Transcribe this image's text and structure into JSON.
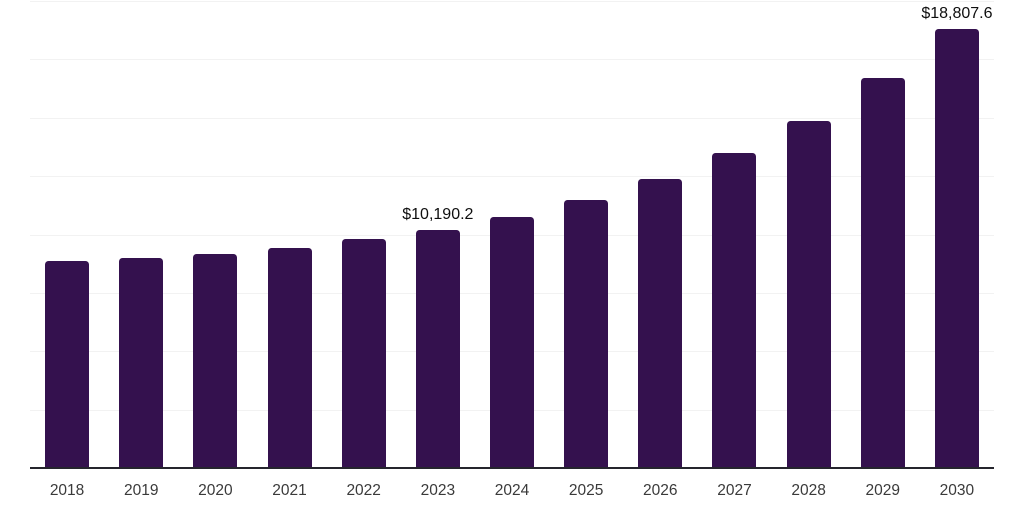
{
  "chart_data": {
    "type": "bar",
    "title": "",
    "xlabel": "",
    "ylabel": "",
    "categories": [
      "2018",
      "2019",
      "2020",
      "2021",
      "2022",
      "2023",
      "2024",
      "2025",
      "2026",
      "2027",
      "2028",
      "2029",
      "2030"
    ],
    "values": [
      8880,
      9010,
      9160,
      9410,
      9810,
      10190.2,
      10770,
      11460,
      12360,
      13470,
      14870,
      16710,
      18807.6
    ],
    "labeled_points": [
      {
        "category": "2023",
        "label": "$10,190.2"
      },
      {
        "category": "2030",
        "label": "$18,807.6"
      }
    ],
    "ylim": [
      0,
      20000
    ],
    "gridline_step": 2500,
    "grid": true,
    "legend": "none",
    "y_tick_labels_shown": false,
    "colors": {
      "bar": "#34114E",
      "gridline": "#f2f2f2",
      "axis_line": "#25252d",
      "value_label": "#0f0f0f",
      "tick_label": "#3a3a3a",
      "background": "#ffffff"
    }
  }
}
